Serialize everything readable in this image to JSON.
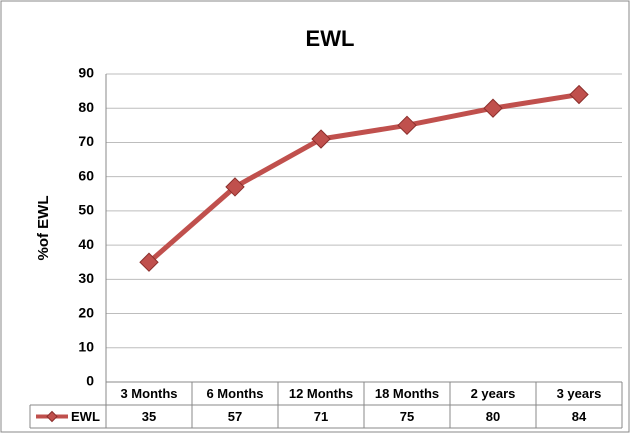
{
  "chart_data": {
    "type": "line",
    "title": "EWL",
    "y_label": "%of EWL",
    "categories": [
      "3 Months",
      "6 Months",
      "12 Months",
      "18 Months",
      "2 years",
      "3 years"
    ],
    "series": [
      {
        "name": "EWL",
        "color": "#c0504d",
        "values": [
          35,
          57,
          71,
          75,
          80,
          84
        ]
      }
    ],
    "ylim": [
      0,
      90
    ],
    "yticks": [
      0,
      10,
      20,
      30,
      40,
      50,
      60,
      70,
      80,
      90
    ],
    "grid": true
  }
}
